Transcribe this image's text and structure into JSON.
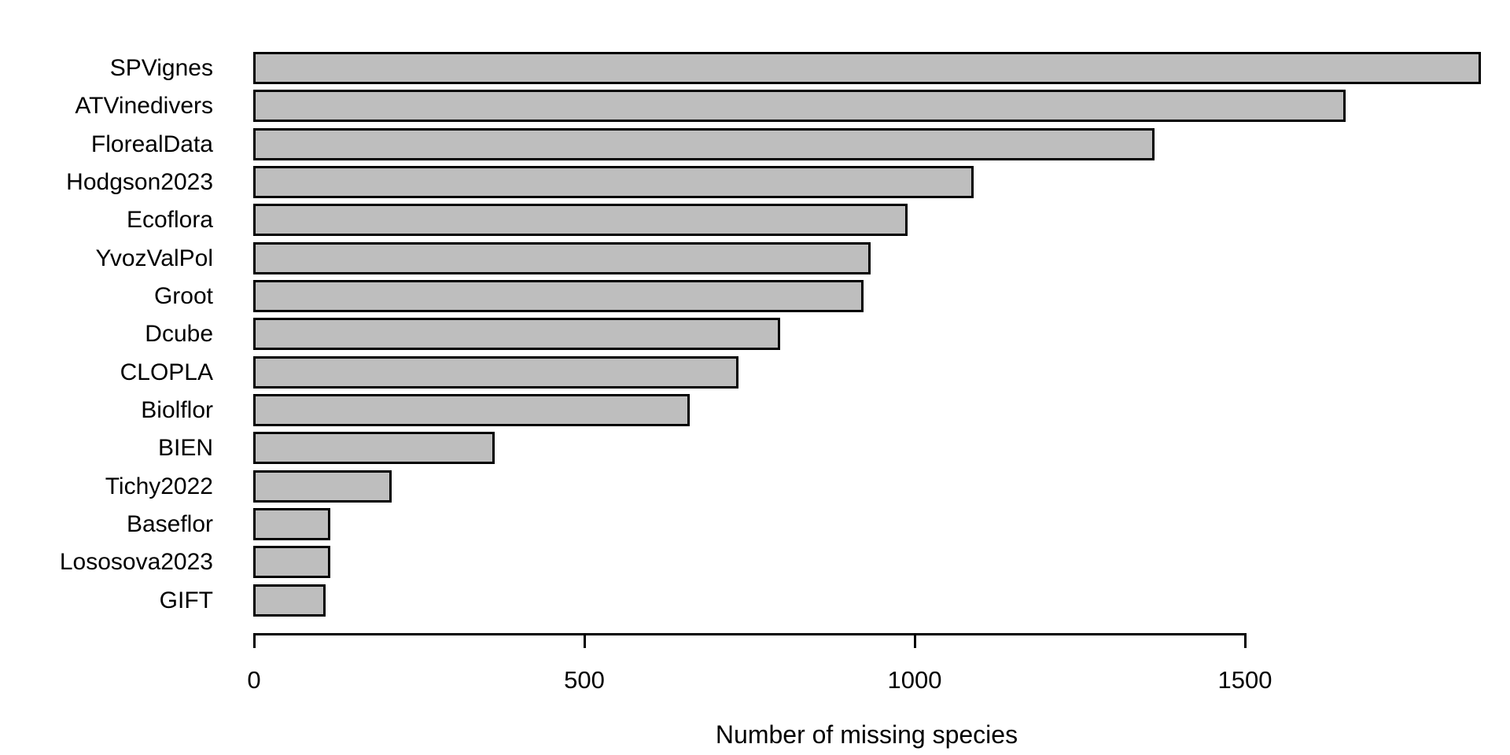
{
  "chart_data": {
    "type": "bar",
    "orientation": "horizontal",
    "title": "",
    "xlabel": "Number of missing species",
    "ylabel": "",
    "categories": [
      "SPVignes",
      "ATVinedivers",
      "FlorealData",
      "Hodgson2023",
      "Ecoflora",
      "YvozValPol",
      "Groot",
      "Dcube",
      "CLOPLA",
      "Biolflor",
      "BIEN",
      "Tichy2022",
      "Baseflor",
      "Lososova2023",
      "GIFT"
    ],
    "values": [
      1858,
      1653,
      1364,
      1091,
      991,
      934,
      924,
      798,
      734,
      661,
      366,
      210,
      117,
      117,
      110
    ],
    "x_ticks": [
      0,
      500,
      1000,
      1500
    ],
    "xlim": [
      0,
      1875
    ],
    "grid": false,
    "legend_position": "none",
    "bar_fill_color": "#BEBEBE",
    "bar_border_color": "#000000",
    "axis_color": "#000000",
    "background_color": "#ffffff"
  }
}
